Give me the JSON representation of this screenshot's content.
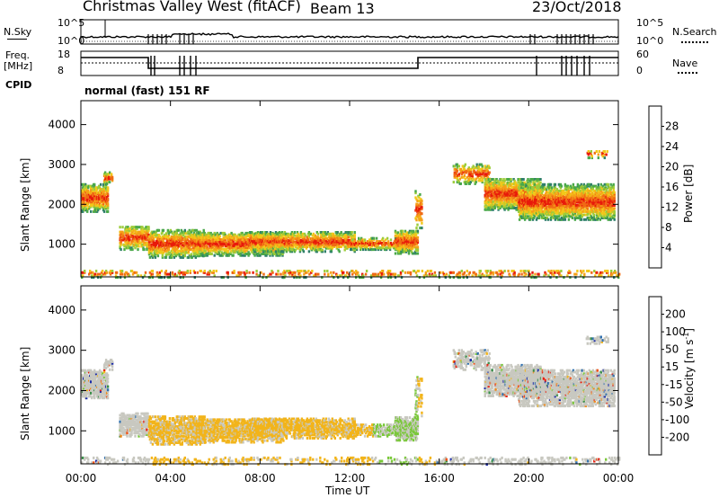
{
  "header": {
    "station": "Christmas Valley West (fitACF)",
    "beam": "Beam 13",
    "date": "23/Oct/2018"
  },
  "noise_panel": {
    "left_label": "N.Sky",
    "right_label": "N.Search",
    "left_ticks": [
      "10^5",
      "10^0"
    ],
    "right_ticks": [
      "10^5",
      "10^0"
    ]
  },
  "freq_panel": {
    "left_label_1": "Freq.",
    "left_label_2": "[MHz]",
    "right_label": "Nave",
    "left_ticks": [
      "18",
      "8"
    ],
    "right_ticks": [
      "60",
      "0"
    ]
  },
  "cpid": {
    "label": "CPID",
    "value": "normal (fast) 151 RF"
  },
  "chart_data": [
    {
      "type": "heatmap",
      "name": "power",
      "ylabel": "Slant Range [km]",
      "xlabel": "Time UT",
      "x_ticks": [
        "00:00",
        "04:00",
        "08:00",
        "12:00",
        "16:00",
        "20:00",
        "00:00"
      ],
      "x_range_hours": [
        0,
        24
      ],
      "y_ticks": [
        1000,
        2000,
        3000,
        4000
      ],
      "ylim": [
        180,
        4600
      ],
      "colorbar": {
        "label": "Power [dB]",
        "ticks": [
          4,
          8,
          12,
          16,
          20,
          24,
          28
        ],
        "range": [
          0,
          32
        ],
        "colors": [
          "#0a1ad8",
          "#1e4fae",
          "#2f7f6a",
          "#4aa84a",
          "#9ccc3a",
          "#f2c81a",
          "#f5a018",
          "#f06a14",
          "#e81a0a"
        ]
      }
    },
    {
      "type": "heatmap",
      "name": "velocity",
      "ylabel": "Slant Range [km]",
      "xlabel": "Time UT",
      "x_ticks": [
        "00:00",
        "04:00",
        "08:00",
        "12:00",
        "16:00",
        "20:00",
        "00:00"
      ],
      "x_range_hours": [
        0,
        24
      ],
      "y_ticks": [
        1000,
        2000,
        3000,
        4000
      ],
      "ylim": [
        180,
        4600
      ],
      "colorbar": {
        "label": "Velocity [m s-1]",
        "label_unit_base": "Velocity [m s",
        "label_unit_exp": "-1",
        "label_unit_close": "]",
        "ticks": [
          200,
          100,
          50,
          15,
          -15,
          -50,
          -100,
          -200
        ],
        "colors": [
          "#1a2aa8",
          "#2f6fae",
          "#3a8f4a",
          "#7ac83a",
          "#c8c8c0",
          "#f2b41a",
          "#f08a1a",
          "#f0541a",
          "#e81a0a"
        ]
      }
    }
  ],
  "colors": {
    "ground_scatter": "#c8c8c0",
    "frame": "#000000"
  }
}
